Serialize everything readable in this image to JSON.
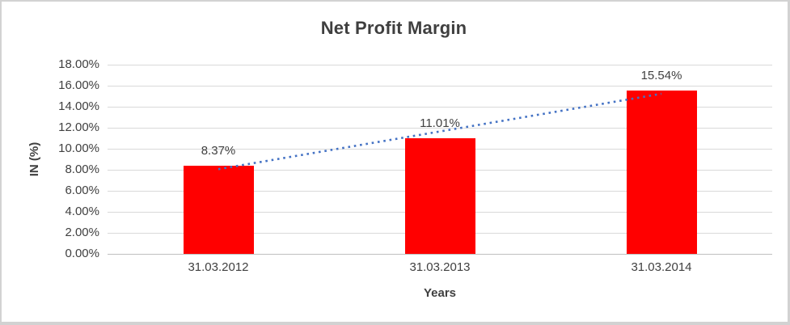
{
  "chart_data": {
    "type": "bar",
    "title": "Net Profit Margin",
    "xlabel": "Years",
    "ylabel": "IN (%)",
    "categories": [
      "31.03.2012",
      "31.03.2013",
      "31.03.2014"
    ],
    "values": [
      8.37,
      11.01,
      15.54
    ],
    "data_labels": [
      "8.37%",
      "11.01%",
      "15.54%"
    ],
    "ylim": [
      0,
      18
    ],
    "y_tick_step": 2,
    "y_tick_labels": [
      "18.00%",
      "16.00%",
      "14.00%",
      "12.00%",
      "10.00%",
      "8.00%",
      "6.00%",
      "4.00%",
      "2.00%",
      "0.00%"
    ],
    "grid": true,
    "legend": "none",
    "bar_color": "#ff0000",
    "gridline_color": "#d9d9d9",
    "text_color": "#404040",
    "trendline": {
      "type": "linear",
      "style": "dotted",
      "color": "#4472c4",
      "start_value": 8.06,
      "end_value": 15.23
    }
  }
}
